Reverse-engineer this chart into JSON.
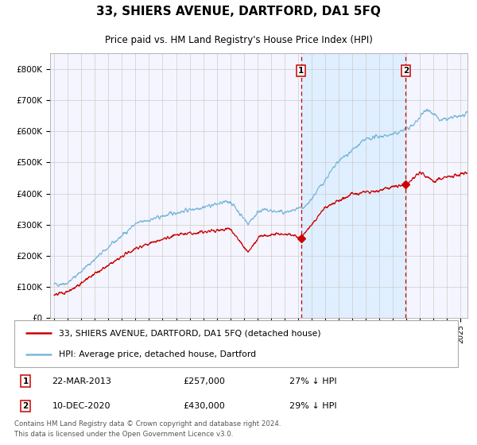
{
  "title": "33, SHIERS AVENUE, DARTFORD, DA1 5FQ",
  "subtitle": "Price paid vs. HM Land Registry's House Price Index (HPI)",
  "legend_line1": "33, SHIERS AVENUE, DARTFORD, DA1 5FQ (detached house)",
  "legend_line2": "HPI: Average price, detached house, Dartford",
  "annotation1_date": "22-MAR-2013",
  "annotation1_price": 257000,
  "annotation1_label": "27% ↓ HPI",
  "annotation2_date": "10-DEC-2020",
  "annotation2_price": 430000,
  "annotation2_label": "29% ↓ HPI",
  "vline1_year": 2013.22,
  "vline2_year": 2020.94,
  "shade_start": 2013.22,
  "shade_end": 2020.94,
  "hpi_color": "#7ab8d9",
  "price_color": "#cc0000",
  "shade_color": "#ddeeff",
  "vline_color": "#cc0000",
  "background_color": "#f5f5ff",
  "grid_color": "#cccccc",
  "ylim": [
    0,
    850000
  ],
  "xlim_start": 1994.7,
  "xlim_end": 2025.5,
  "footer": "Contains HM Land Registry data © Crown copyright and database right 2024.\nThis data is licensed under the Open Government Licence v3.0."
}
